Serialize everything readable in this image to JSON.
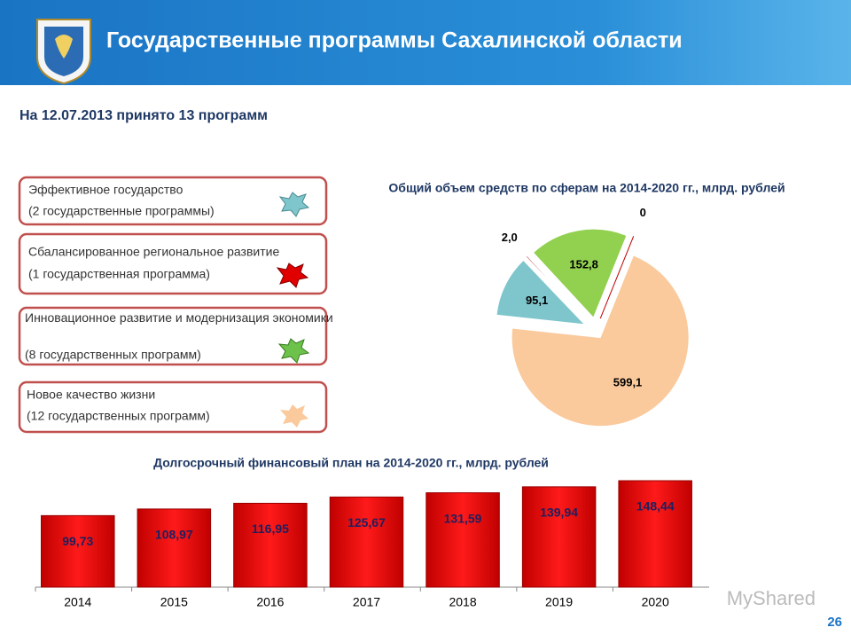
{
  "header": {
    "title": "Государственные программы Сахалинской области"
  },
  "subtitle": "На 12.07.2013 принято 13 программ",
  "programs": [
    {
      "name": "Эффективное государство",
      "count": "(2 государственные программы)"
    },
    {
      "name": "Сбалансированное региональное развитие",
      "count": "(1 государственная программа)"
    },
    {
      "name": "Инновационное развитие и модернизация экономики",
      "count": "(8 государственных программ)"
    },
    {
      "name": "Новое качество жизни",
      "count": "(12 государственных программ)"
    }
  ],
  "chart_data": [
    {
      "type": "pie",
      "title": "Общий объем средств по сферам на 2014-2020 гг., млрд. рублей",
      "values": [
        599.1,
        95.1,
        2.0,
        152.8,
        0
      ],
      "value_labels": [
        "599,1",
        "95,1",
        "2,0",
        "152,8",
        "0"
      ],
      "colors": [
        "#fac99c",
        "#7ec6cc",
        "#a0282a",
        "#92d050",
        "#c00000"
      ]
    },
    {
      "type": "bar",
      "title": "Долгосрочный финансовый план на 2014-2020 гг., млрд. рублей",
      "categories": [
        "2014",
        "2015",
        "2016",
        "2017",
        "2018",
        "2019",
        "2020"
      ],
      "values": [
        99.73,
        108.97,
        116.95,
        125.67,
        131.59,
        139.94,
        148.44
      ],
      "value_labels": [
        "99,73",
        "108,97",
        "116,95",
        "125,67",
        "131,59",
        "139,94",
        "148,44"
      ],
      "color": "#ff0000"
    }
  ],
  "watermark": "MyShared",
  "page_number": "26"
}
